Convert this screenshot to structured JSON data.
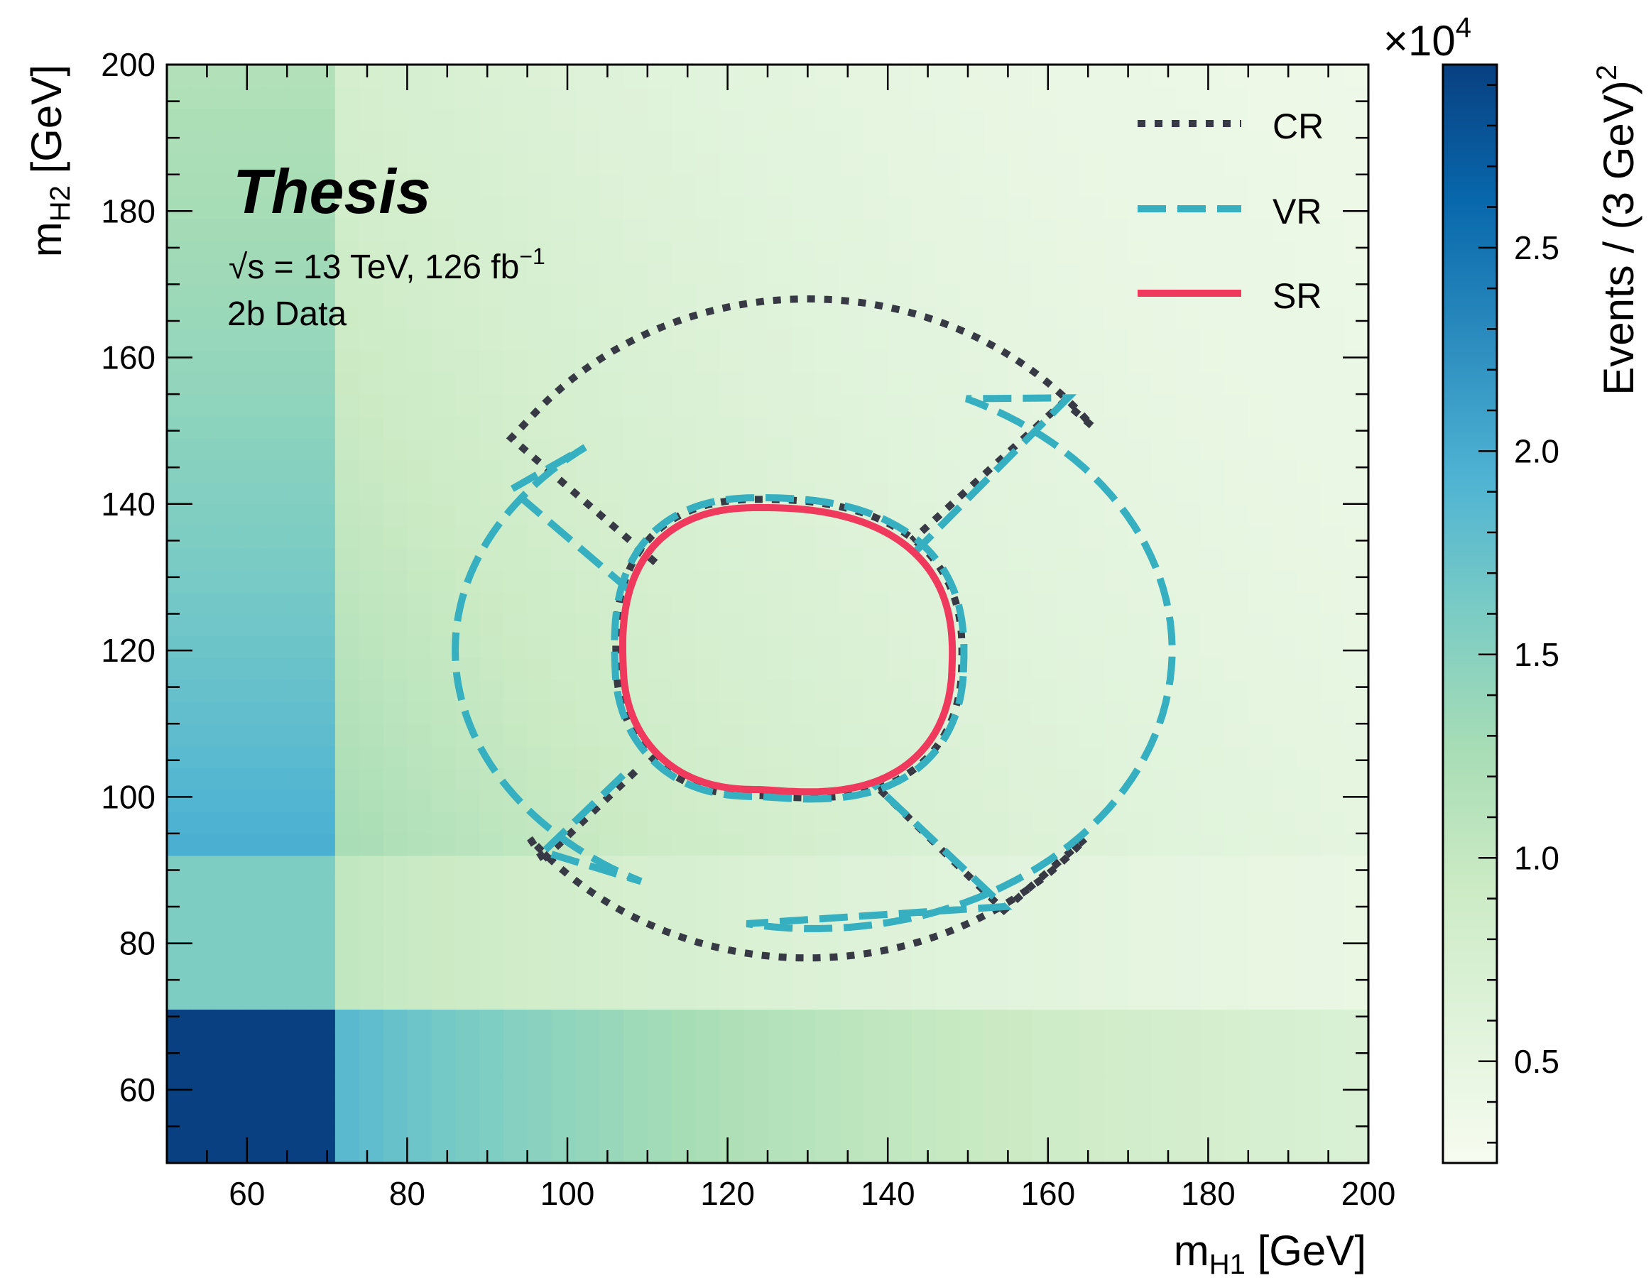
{
  "chart_data": {
    "type": "heatmap",
    "title": "",
    "brand_label": "Thesis",
    "energy_label": {
      "sqrt": "√s",
      "pre": " = 13 TeV, 126 fb",
      "sup": "−1"
    },
    "sample_label": "2b Data",
    "xlabel": {
      "main": "m",
      "sub": "H1",
      "unit": " [GeV]"
    },
    "ylabel": {
      "main": "m",
      "sub": "H2",
      "unit": " [GeV]"
    },
    "xlim": [
      50,
      200
    ],
    "ylim": [
      50,
      200
    ],
    "x_ticks": [
      60,
      80,
      100,
      120,
      140,
      160,
      180,
      200
    ],
    "y_ticks": [
      60,
      80,
      100,
      120,
      140,
      160,
      180,
      200
    ],
    "colorbar": {
      "label": {
        "main": "Events / (3 GeV)",
        "sup": "2"
      },
      "multiplier": {
        "pre": "×10",
        "sup": "4"
      },
      "range": [
        0.25,
        2.95
      ],
      "ticks": [
        0.5,
        1.0,
        1.5,
        2.0,
        2.5
      ],
      "tick_labels": [
        "0.5",
        "1.0",
        "1.5",
        "2.0",
        "2.5"
      ],
      "colormap": "GnBu",
      "colors": [
        "#f7fcf0",
        "#e0f3db",
        "#ccebc5",
        "#a8ddb5",
        "#7bccc4",
        "#4eb3d3",
        "#2b8cbe",
        "#0868ac",
        "#084081"
      ]
    },
    "bin_width_gev": 3,
    "regions": [
      {
        "name": "CR",
        "color": "#373a45",
        "style": "dotted"
      },
      {
        "name": "VR",
        "color": "#36b0c0",
        "style": "dashed"
      },
      {
        "name": "SR",
        "color": "#ef3a5d",
        "style": "solid"
      }
    ],
    "region_shapes": {
      "SR": {
        "center": [
          124,
          117
        ],
        "x_range": [
          107,
          148
        ],
        "y_range": [
          101,
          139.5
        ]
      },
      "VR_inner": {
        "x_range": [
          106,
          149
        ],
        "y_range": [
          100,
          141
        ]
      },
      "VR_outer": {
        "x_range": [
          86,
          175.5
        ],
        "y_range": [
          82,
          155
        ]
      },
      "CR_inner": {
        "center": [
          124,
          117
        ],
        "y_range": [
          100,
          141
        ]
      },
      "CR_outer": {
        "center": [
          130,
          123
        ],
        "x_range": [
          93,
          162
        ],
        "y_range": [
          78,
          168
        ]
      }
    },
    "legend_position": "top-right",
    "grid": false
  }
}
